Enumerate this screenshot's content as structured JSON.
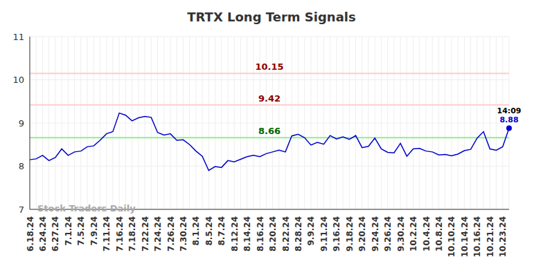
{
  "chart_data": {
    "type": "line",
    "title": "TRTX Long Term Signals",
    "categories": [
      "6.18.24",
      null,
      "6.24.24",
      null,
      "6.27.24",
      null,
      "7.1.24",
      null,
      "7.5.24",
      null,
      "7.9.24",
      null,
      "7.11.24",
      null,
      "7.16.24",
      null,
      "7.18.24",
      null,
      "7.22.24",
      null,
      "7.24.24",
      null,
      "7.26.24",
      null,
      "7.30.24",
      null,
      "8.1.24",
      null,
      "8.5.24",
      null,
      "8.7.24",
      null,
      "8.12.24",
      null,
      "8.14.24",
      null,
      "8.16.24",
      null,
      "8.20.24",
      null,
      "8.22.24",
      null,
      "8.28.24",
      null,
      "9.9.24",
      null,
      "9.11.24",
      null,
      "9.16.24",
      null,
      "9.18.24",
      null,
      "9.20.24",
      null,
      "9.24.24",
      null,
      "9.26.24",
      null,
      "9.30.24",
      null,
      "10.2.24",
      null,
      "10.4.24",
      null,
      "10.8.24",
      null,
      "10.10.24",
      null,
      "10.14.24",
      null,
      "10.16.24",
      null,
      "10.21.24",
      null,
      "10.23.24",
      null
    ],
    "values": [
      8.15,
      8.17,
      8.25,
      8.13,
      8.2,
      8.4,
      8.25,
      8.33,
      8.35,
      8.45,
      8.47,
      8.6,
      8.75,
      8.8,
      9.23,
      9.18,
      9.05,
      9.12,
      9.15,
      9.13,
      8.78,
      8.72,
      8.75,
      8.6,
      8.61,
      8.5,
      8.35,
      8.23,
      7.9,
      7.99,
      7.97,
      8.13,
      8.1,
      8.16,
      8.22,
      8.25,
      8.22,
      8.29,
      8.33,
      8.37,
      8.33,
      8.7,
      8.74,
      8.66,
      8.49,
      8.55,
      8.51,
      8.71,
      8.63,
      8.68,
      8.62,
      8.71,
      8.43,
      8.46,
      8.65,
      8.4,
      8.32,
      8.31,
      8.53,
      8.23,
      8.4,
      8.41,
      8.35,
      8.33,
      8.26,
      8.27,
      8.24,
      8.28,
      8.36,
      8.39,
      8.65,
      8.8,
      8.4,
      8.37,
      8.45,
      8.88
    ],
    "color": "#0000cc",
    "ylim": [
      7,
      11
    ],
    "yticks": [
      7,
      8,
      9,
      10,
      11
    ],
    "grid": true,
    "reference_lines": [
      {
        "value": 10.15,
        "color": "#ffcccc",
        "label_color": "#8b0000"
      },
      {
        "value": 9.42,
        "color": "#ffcccc",
        "label_color": "#8b0000"
      },
      {
        "value": 8.66,
        "color": "#90ee90",
        "label_color": "#006400"
      }
    ],
    "last_point_time": "14:09",
    "watermark": "Stock Traders Daily"
  }
}
